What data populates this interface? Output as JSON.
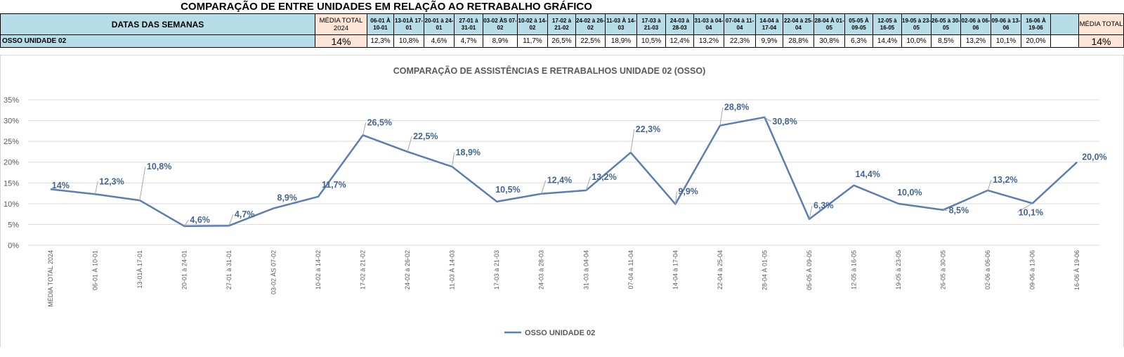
{
  "page_title": "COMPARAÇÃO DE ENTRE UNIDADES EM RELAÇÃO AO RETRABALHO GRÁFICO",
  "table": {
    "row_header": "DATAS DAS SEMANAS",
    "avg_header": "MÉDIA TOTAL 2024",
    "weeks": [
      "06-01 À 10-01",
      "13-01À 17-01",
      "20-01 à 24-01",
      "27-01 à 31-01",
      "03-02 ÀS 07-02",
      "10-02 à 14-02",
      "17-02 à 21-02",
      "24-02 à 26-02",
      "11-03 À 14-03",
      "17-03 à 21-03",
      "24-03 à 28-03",
      "31-03 à 04-04",
      "07-04 à 11-04",
      "14-04 à 17-04",
      "22-04 à 25-04",
      "28-04 À 01-05",
      "05-05 À 09-05",
      "12-05 à 16-05",
      "19-05 à 23-05",
      "26-05 à 30-05",
      "02-06 à 06-06",
      "09-06 à 13-06",
      "16-06 À 19-06"
    ],
    "total_header": "MÉDIA TOTAL",
    "row_label": "OSSO UNIDADE 02",
    "row_avg": "14%",
    "row_values": [
      "12,3%",
      "10,8%",
      "4,6%",
      "4,7%",
      "8,9%",
      "11,7%",
      "26,5%",
      "22,5%",
      "18,9%",
      "10,5%",
      "12,4%",
      "13,2%",
      "22,3%",
      "9,9%",
      "28,8%",
      "30,8%",
      "6,3%",
      "14,4%",
      "10,0%",
      "8,5%",
      "13,2%",
      "10,1%",
      "20,0%"
    ],
    "row_total": "14%"
  },
  "chart_data": {
    "type": "line",
    "title": "COMPARAÇÃO DE ASSISTÊNCIAS E RETRABALHOS UNIDADE 02  (OSSO)",
    "categories": [
      "MÉDIA TOTAL 2024",
      "06-01 À 10-01",
      "13-01À 17-01",
      "20-01 à 24-01",
      "27-01 à 31-01",
      "03-02 ÀS 07-02",
      "10-02 à 14-02",
      "17-02 à 21-02",
      "24-02 à 26-02",
      "11-03  À 14-03",
      "17-03 à 21-03",
      "24-03 à 28-03",
      "31-03 à 04-04",
      "07-04 à 11-04",
      "14-04 à 17-04",
      "22-04 à 25-04",
      "28-04 À 01-05",
      "05-05 À 09-05",
      "12-05 à 16-05",
      "19-05 à 23-05",
      "26-05 à 30-05",
      "02-06 à 06-06",
      "09-06 à 13-06",
      "16-06 À 19-06"
    ],
    "series": [
      {
        "name": "OSSO UNIDADE 02",
        "values": [
          13.5,
          12.3,
          10.8,
          4.6,
          4.7,
          8.9,
          11.7,
          26.5,
          22.5,
          18.9,
          10.5,
          12.4,
          13.2,
          22.3,
          9.9,
          28.8,
          30.8,
          6.3,
          14.4,
          10.0,
          8.5,
          13.2,
          10.1,
          20.0
        ],
        "data_labels": [
          "14%",
          "12,3%",
          "10,8%",
          "4,6%",
          "4,7%",
          "8,9%",
          "11,7%",
          "26,5%",
          "22,5%",
          "18,9%",
          "10,5%",
          "12,4%",
          "13,2%",
          "22,3%",
          "9,9%",
          "28,8%",
          "30,8%",
          "6,3%",
          "14,4%",
          "10,0%",
          "8,5%",
          "13,2%",
          "10,1%",
          "20,0%"
        ]
      }
    ],
    "y_ticks": [
      "0%",
      "5%",
      "10%",
      "15%",
      "20%",
      "25%",
      "30%",
      "35%"
    ],
    "ylim": [
      0,
      35
    ],
    "grid": true,
    "legend_position": "bottom",
    "line_color": "#5b7db1",
    "label_color": "#44658f"
  }
}
